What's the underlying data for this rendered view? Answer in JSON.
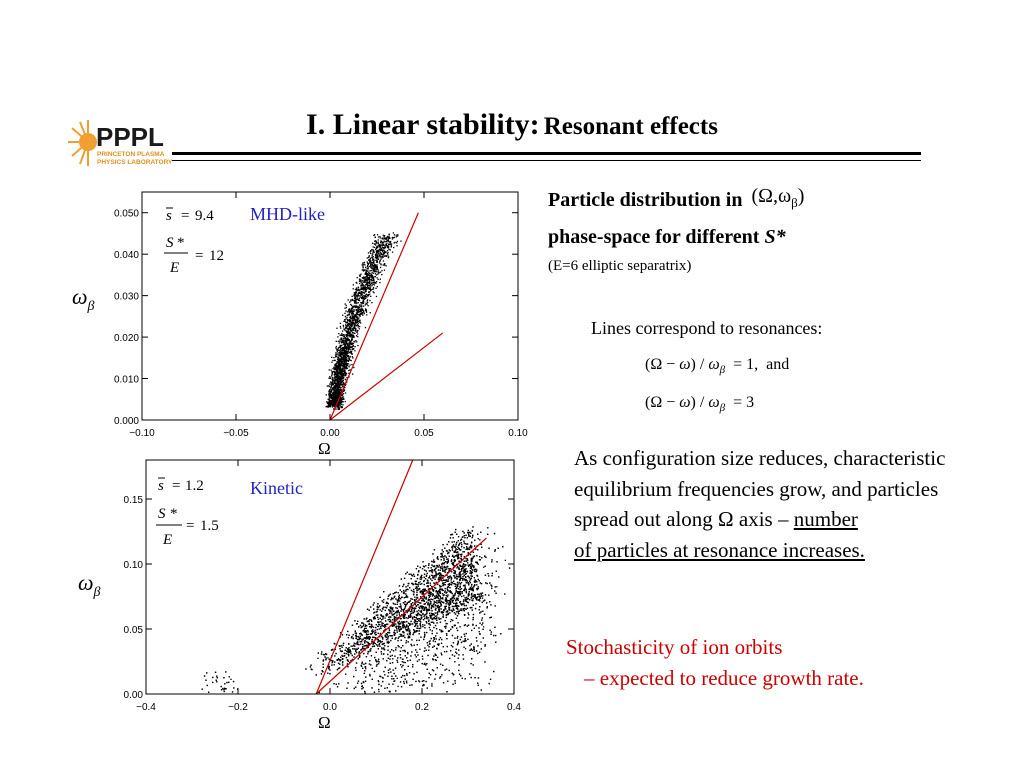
{
  "title": {
    "main": "I. Linear stability:",
    "sub": "Resonant effects"
  },
  "logo": {
    "letters": "PPPL",
    "line1": "PRINCETON PLASMA",
    "line2": "PHYSICS LABORATORY"
  },
  "right_panel": {
    "heading_line1": "Particle distribution in",
    "heading_math": "(Ω,ωβ)",
    "heading_line2": "phase-space for different",
    "heading_var": "S*",
    "note": "(E=6  elliptic separatrix)",
    "lines_label": "Lines correspond to resonances:",
    "eq1": "(Ω − ω) / ωβ = 1,",
    "eq1_and": "and",
    "eq2": "(Ω − ω) / ωβ = 3",
    "para_plain": "As configuration size reduces, characteristic equilibrium frequencies grow, and particles spread out along Ω axis –",
    "para_underlined_1": "number",
    "para_underlined_2": "of particles at resonance increases.",
    "stoch_line1": "Stochasticity of ion orbits",
    "stoch_line2": "– expected to reduce growth rate."
  },
  "colors": {
    "annotation": "#2222cc",
    "resonance_line": "#cc0000",
    "highlight_text": "#cc0000"
  },
  "chart_data": [
    {
      "type": "scatter",
      "label": "MHD-like",
      "params": {
        "s_bar": "9.4",
        "s_star_over_E": "12"
      },
      "xlabel": "Ω",
      "ylabel": "ωβ",
      "xlim": [
        -0.1,
        0.1
      ],
      "ylim": [
        0.0,
        0.055
      ],
      "xticks": [
        "−0.10",
        "−0.05",
        "0.00",
        "0.05",
        "0.10"
      ],
      "yticks": [
        "0.000",
        "0.010",
        "0.020",
        "0.030",
        "0.040",
        "0.050"
      ],
      "lines": [
        {
          "name": "resonance 1",
          "x": [
            0.0,
            0.047
          ],
          "y": [
            0.0,
            0.05
          ]
        },
        {
          "name": "resonance 3",
          "x": [
            0.0,
            0.06
          ],
          "y": [
            0.0,
            0.021
          ]
        }
      ],
      "distribution": "dense crescent of points from (0.00, 0.005) rising to (0.035, 0.045)"
    },
    {
      "type": "scatter",
      "label": "Kinetic",
      "params": {
        "s_bar": "1.2",
        "s_star_over_E": "1.5"
      },
      "xlabel": "Ω",
      "ylabel": "ωβ",
      "xlim": [
        -0.4,
        0.4
      ],
      "ylim": [
        0.0,
        0.18
      ],
      "xticks": [
        "−0.4",
        "−0.2",
        "0.0",
        "0.2",
        "0.4"
      ],
      "yticks": [
        "0.00",
        "0.05",
        "0.10",
        "0.15"
      ],
      "lines": [
        {
          "name": "resonance 1",
          "x": [
            -0.03,
            0.18
          ],
          "y": [
            0.0,
            0.18
          ]
        },
        {
          "name": "resonance 3",
          "x": [
            -0.03,
            0.34
          ],
          "y": [
            0.0,
            0.12
          ]
        }
      ],
      "distribution": "broad wedge of points from (-0.05, 0.00) spreading to (0.30, 0.13)"
    }
  ]
}
